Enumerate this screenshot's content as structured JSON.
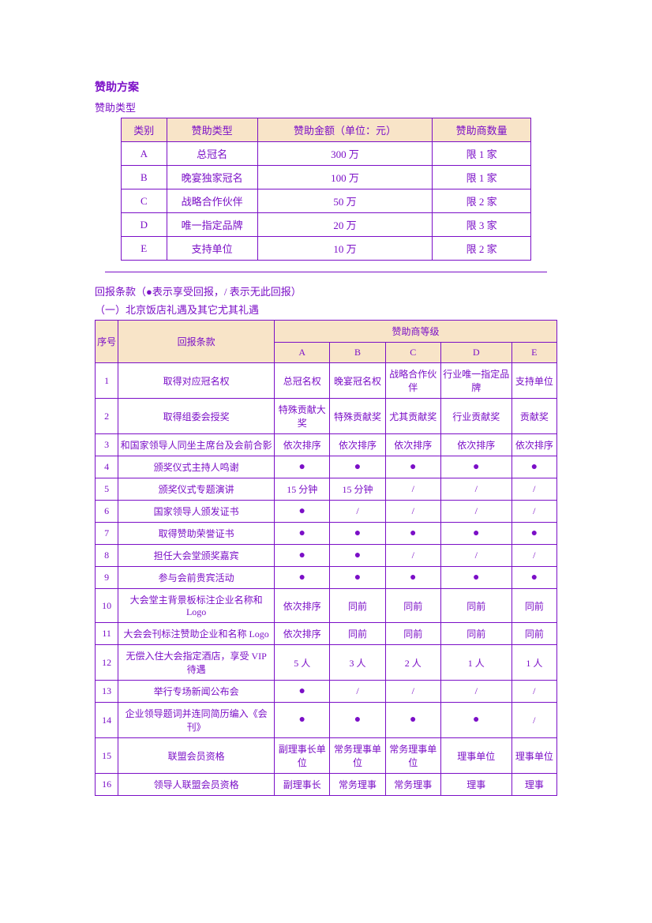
{
  "title": "赞助方案",
  "subtitle": "赞助类型",
  "colors": {
    "text": "#7b0fc7",
    "border": "#7b0fc7",
    "header_bg": "#f8e4c8",
    "page_bg": "#ffffff"
  },
  "table1": {
    "headers": [
      "类别",
      "赞助类型",
      "赞助金额（单位：元）",
      "赞助商数量"
    ],
    "rows": [
      [
        "A",
        "总冠名",
        "300 万",
        "限 1 家"
      ],
      [
        "B",
        "晚宴独家冠名",
        "100 万",
        "限 1 家"
      ],
      [
        "C",
        "战略合作伙伴",
        "50 万",
        "限 2 家"
      ],
      [
        "D",
        "唯一指定品牌",
        "20 万",
        "限 3 家"
      ],
      [
        "E",
        "支持单位",
        "10 万",
        "限 2 家"
      ]
    ]
  },
  "return_note": "回报条款（●表示享受回报，/ 表示无此回报）",
  "section_one": "（一）北京饭店礼遇及其它尤其礼遇",
  "table2": {
    "header_seq": "序号",
    "header_desc": "回报条款",
    "header_grade": "赞助商等级",
    "grades": [
      "A",
      "B",
      "C",
      "D",
      "E"
    ],
    "rows": [
      {
        "n": "1",
        "desc": "取得对应冠名权",
        "v": [
          "总冠名权",
          "晚宴冠名权",
          "战略合作伙伴",
          "行业唯一指定品牌",
          "支持单位"
        ]
      },
      {
        "n": "2",
        "desc": "取得组委会授奖",
        "v": [
          "特殊贡献大奖",
          "特殊贡献奖",
          "尤其贡献奖",
          "行业贡献奖",
          "贡献奖"
        ]
      },
      {
        "n": "3",
        "desc": "和国家领导人同坐主席台及会前合影",
        "v": [
          "依次排序",
          "依次排序",
          "依次排序",
          "依次排序",
          "依次排序"
        ]
      },
      {
        "n": "4",
        "desc": "颁奖仪式主持人鸣谢",
        "v": [
          "●",
          "●",
          "●",
          "●",
          "●"
        ]
      },
      {
        "n": "5",
        "desc": "颁奖仪式专题演讲",
        "v": [
          "15 分钟",
          "15 分钟",
          "/",
          "/",
          "/"
        ]
      },
      {
        "n": "6",
        "desc": "国家领导人颁发证书",
        "v": [
          "●",
          "/",
          "/",
          "/",
          "/"
        ]
      },
      {
        "n": "7",
        "desc": "取得赞助荣誉证书",
        "v": [
          "●",
          "●",
          "●",
          "●",
          "●"
        ]
      },
      {
        "n": "8",
        "desc": "担任大会堂颁奖嘉宾",
        "v": [
          "●",
          "●",
          "/",
          "/",
          "/"
        ]
      },
      {
        "n": "9",
        "desc": "参与会前贵宾活动",
        "v": [
          "●",
          "●",
          "●",
          "●",
          "●"
        ]
      },
      {
        "n": "10",
        "desc": "大会堂主背景板标注企业名称和 Logo",
        "v": [
          "依次排序",
          "同前",
          "同前",
          "同前",
          "同前"
        ]
      },
      {
        "n": "11",
        "desc": "大会会刊标注赞助企业和名称 Logo",
        "v": [
          "依次排序",
          "同前",
          "同前",
          "同前",
          "同前"
        ]
      },
      {
        "n": "12",
        "desc": "无偿入住大会指定酒店，享受 VIP 待遇",
        "v": [
          "5 人",
          "3 人",
          "2 人",
          "1 人",
          "1 人"
        ]
      },
      {
        "n": "13",
        "desc": "举行专场新闻公布会",
        "v": [
          "●",
          "/",
          "/",
          "/",
          "/"
        ]
      },
      {
        "n": "14",
        "desc": "企业领导题词并连同简历编入《会刊》",
        "v": [
          "●",
          "●",
          "●",
          "●",
          "/"
        ]
      },
      {
        "n": "15",
        "desc": "联盟会员资格",
        "v": [
          "副理事长单位",
          "常务理事单位",
          "常务理事单位",
          "理事单位",
          "理事单位"
        ]
      },
      {
        "n": "16",
        "desc": "领导人联盟会员资格",
        "v": [
          "副理事长",
          "常务理事",
          "常务理事",
          "理事",
          "理事"
        ]
      }
    ]
  }
}
